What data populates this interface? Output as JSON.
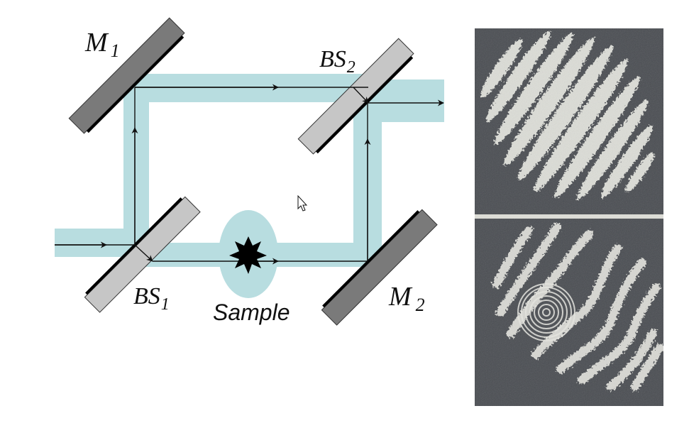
{
  "diagram": {
    "labels": {
      "m1": "M",
      "m1_sub": "1",
      "m2": "M",
      "m2_sub": "2",
      "bs1": "BS",
      "bs1_sub": "1",
      "bs2": "BS",
      "bs2_sub": "2",
      "sample": "Sample"
    },
    "colors": {
      "beam_band": "#b8dde0",
      "ray": "#111111",
      "mirror_fill": "#7a7a7a",
      "splitter_fill": "#c6c6c6",
      "coating": "#000000",
      "photo_bg": "#4a4d52",
      "fringe": "#e8e8e2"
    },
    "icons": [
      "cursor-arrow-icon"
    ]
  }
}
